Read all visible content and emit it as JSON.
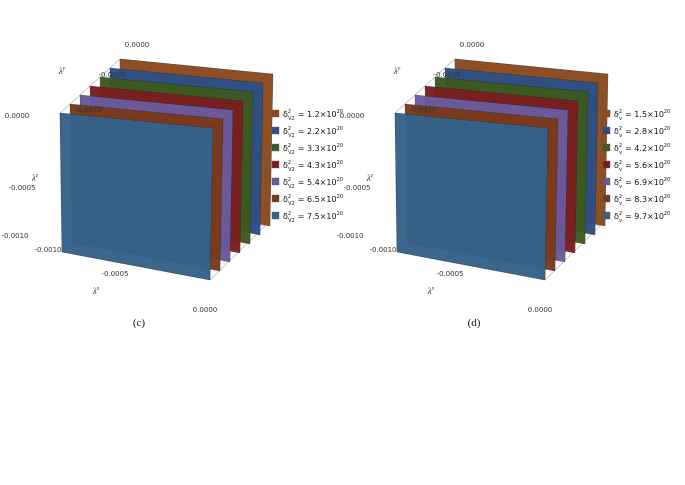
{
  "panels": [
    {
      "caption": "(c)",
      "axes": {
        "y": {
          "base": "λ",
          "sup": "y",
          "ticks": [
            "0.0000",
            "-0.0005",
            "-0.0010"
          ]
        },
        "z": {
          "base": "λ",
          "sup": "z",
          "ticks": [
            "0.0000",
            "-0.0005",
            "-0.0010"
          ]
        },
        "x": {
          "base": "λ",
          "sup": "x",
          "ticks": [
            "-0.0010",
            "-0.0005",
            "0.0000"
          ]
        }
      },
      "legend": [
        {
          "symbol": "δ",
          "sup": "2",
          "sub": "V2",
          "value": "= 1.2×10",
          "exp": "20",
          "color": "#8a4a1c"
        },
        {
          "symbol": "δ",
          "sup": "2",
          "sub": "V2",
          "value": "= 2.2×10",
          "exp": "20",
          "color": "#2e4f86"
        },
        {
          "symbol": "δ",
          "sup": "2",
          "sub": "V2",
          "value": "= 3.3×10",
          "exp": "20",
          "color": "#3d5a1f"
        },
        {
          "symbol": "δ",
          "sup": "2",
          "sub": "V2",
          "value": "= 4.3×10",
          "exp": "20",
          "color": "#7a1f1f"
        },
        {
          "symbol": "δ",
          "sup": "2",
          "sub": "V2",
          "value": "= 5.4×10",
          "exp": "20",
          "color": "#6a5a9c"
        },
        {
          "symbol": "δ",
          "sup": "2",
          "sub": "V2",
          "value": "= 6.5×10",
          "exp": "20",
          "color": "#7a3a1a"
        },
        {
          "symbol": "δ",
          "sup": "2",
          "sub": "V2",
          "value": "= 7.5×10",
          "exp": "20",
          "color": "#35628a"
        }
      ]
    },
    {
      "caption": "(d)",
      "axes": {
        "y": {
          "base": "λ",
          "sup": "y",
          "ticks": [
            "0.0000",
            "-0.0005",
            "-0.0010"
          ]
        },
        "z": {
          "base": "λ",
          "sup": "z",
          "ticks": [
            "0.0000",
            "-0.0005",
            "-0.0010"
          ]
        },
        "x": {
          "base": "λ",
          "sup": "x",
          "ticks": [
            "-0.0010",
            "-0.0005",
            "0.0000"
          ]
        }
      },
      "legend": [
        {
          "symbol": "δ",
          "sup": "2",
          "sub": "v",
          "value": "= 1.5×10",
          "exp": "20",
          "color": "#8a4a1c"
        },
        {
          "symbol": "δ",
          "sup": "2",
          "sub": "v",
          "value": "= 2.8×10",
          "exp": "20",
          "color": "#2e4f86"
        },
        {
          "symbol": "δ",
          "sup": "2",
          "sub": "v",
          "value": "= 4.2×10",
          "exp": "20",
          "color": "#3d5a1f"
        },
        {
          "symbol": "δ",
          "sup": "2",
          "sub": "v",
          "value": "= 5.6×10",
          "exp": "20",
          "color": "#7a1f1f"
        },
        {
          "symbol": "δ",
          "sup": "2",
          "sub": "v",
          "value": "= 6.9×10",
          "exp": "20",
          "color": "#6a5a9c"
        },
        {
          "symbol": "δ",
          "sup": "2",
          "sub": "v",
          "value": "= 8.3×10",
          "exp": "20",
          "color": "#7a3a1a"
        },
        {
          "symbol": "δ",
          "sup": "2",
          "sub": "v",
          "value": "= 9.7×10",
          "exp": "20",
          "color": "#35628a"
        }
      ]
    }
  ]
}
